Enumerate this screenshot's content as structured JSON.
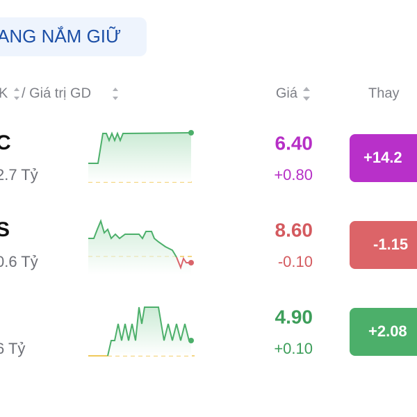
{
  "tab": {
    "title": "ANG NẮM GIỮ"
  },
  "header": {
    "col1": "K",
    "col1b": "/ Giá trị GD",
    "price": "Giá",
    "change": "Thay"
  },
  "rows": [
    {
      "ticker": "C",
      "value": "2.7 Tỷ",
      "price": "6.40",
      "delta": "+0.80",
      "change": "+14.2"
    },
    {
      "ticker": "S",
      "value": "0.6 Tỷ",
      "price": "8.60",
      "delta": "-0.10",
      "change": "-1.15"
    },
    {
      "value": "6 Tỷ",
      "price": "4.90",
      "delta": "+0.10",
      "change": "+2.08"
    }
  ]
}
